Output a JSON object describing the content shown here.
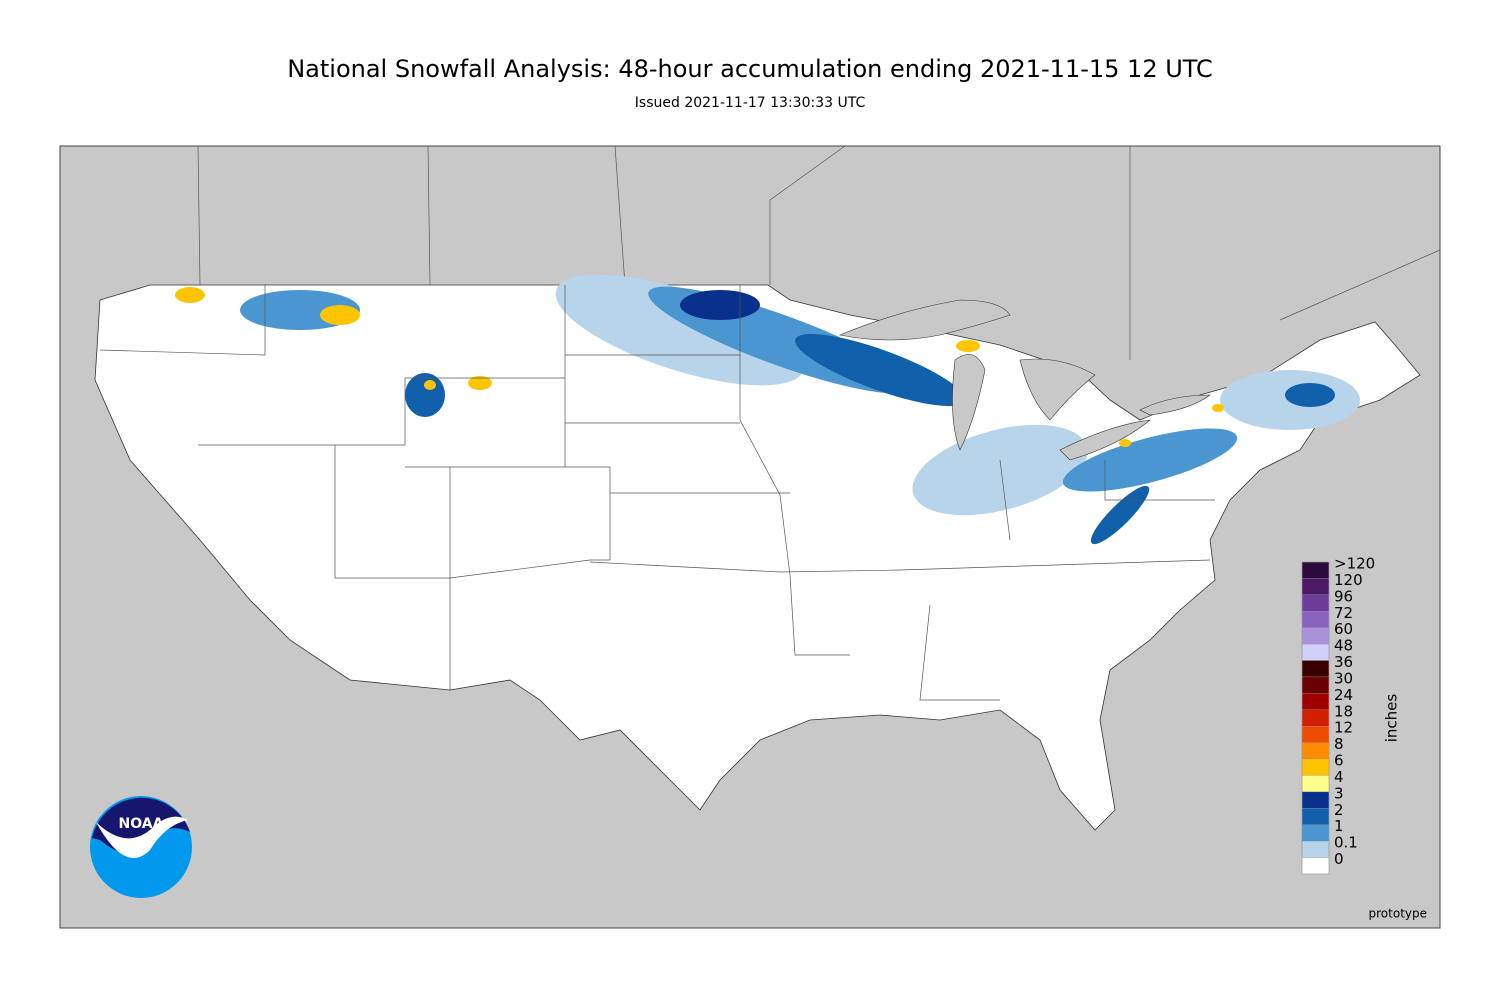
{
  "header": {
    "title": "National Snowfall Analysis: 48-hour accumulation ending 2021-11-15 12 UTC",
    "subtitle": "Issued 2021-11-17 13:30:33 UTC"
  },
  "legend": {
    "title": "inches",
    "items": [
      {
        "label": ">120",
        "color": "#2d0a3e"
      },
      {
        "label": "120",
        "color": "#4b1966"
      },
      {
        "label": "96",
        "color": "#6e3d99"
      },
      {
        "label": "72",
        "color": "#8a62bf"
      },
      {
        "label": "60",
        "color": "#a892dc"
      },
      {
        "label": "48",
        "color": "#d0d0fa"
      },
      {
        "label": "36",
        "color": "#3a0000"
      },
      {
        "label": "30",
        "color": "#6a0000"
      },
      {
        "label": "24",
        "color": "#a00000"
      },
      {
        "label": "18",
        "color": "#d41e00"
      },
      {
        "label": "12",
        "color": "#ee4a00"
      },
      {
        "label": "8",
        "color": "#ff8c00"
      },
      {
        "label": "6",
        "color": "#ffc400"
      },
      {
        "label": "4",
        "color": "#ffff8c"
      },
      {
        "label": "3",
        "color": "#08308c"
      },
      {
        "label": "2",
        "color": "#1060ac"
      },
      {
        "label": "1",
        "color": "#4a96d0"
      },
      {
        "label": "0.1",
        "color": "#b8d4ea"
      },
      {
        "label": "0",
        "color": "#ffffff"
      }
    ]
  },
  "note": "prototype",
  "logo": "NOAA"
}
